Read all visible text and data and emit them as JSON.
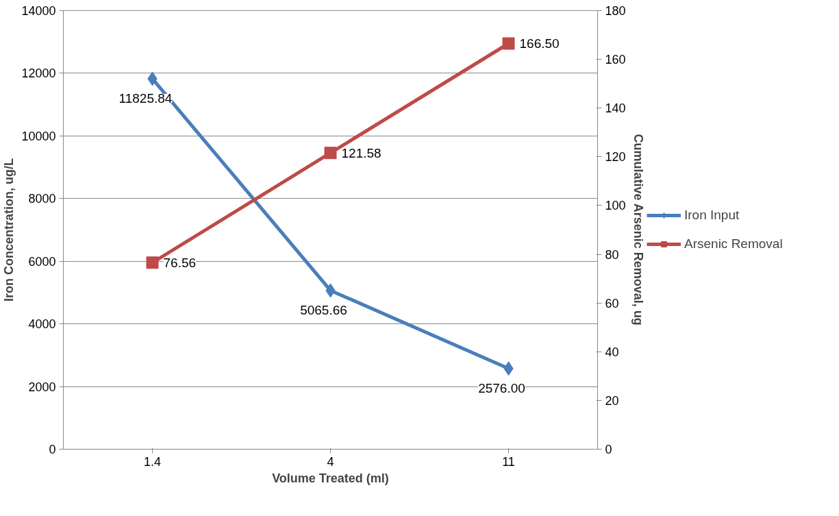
{
  "chart_data": {
    "type": "line",
    "xlabel": "Volume Treated (ml)",
    "ylabel": "Iron Concentration, ug/L",
    "y2label": "Cumulative Arsenic Removal, ug",
    "categories": [
      "1.4",
      "4",
      "11"
    ],
    "series": [
      {
        "name": "Iron Input",
        "color": "#4a7ebb",
        "marker": "diamond",
        "values": [
          11825.84,
          5065.66,
          2576.0
        ],
        "value_labels": [
          "11825.84",
          "5065.66",
          "2576.00"
        ]
      },
      {
        "name": "Arsenic Removal",
        "color": "#be4b48",
        "marker": "square",
        "axis": "y2",
        "values": [
          76.56,
          121.58,
          166.5
        ],
        "value_labels": [
          "76.56",
          "121.58",
          "166.50"
        ]
      }
    ],
    "ylim": [
      0,
      14000
    ],
    "yticks": [
      0,
      2000,
      4000,
      6000,
      8000,
      10000,
      12000,
      14000
    ],
    "y2lim": [
      0,
      180
    ],
    "y2ticks": [
      0,
      20,
      40,
      60,
      80,
      100,
      120,
      140,
      160,
      180
    ],
    "grid": "y",
    "legend": "right",
    "line_style": "solid"
  }
}
